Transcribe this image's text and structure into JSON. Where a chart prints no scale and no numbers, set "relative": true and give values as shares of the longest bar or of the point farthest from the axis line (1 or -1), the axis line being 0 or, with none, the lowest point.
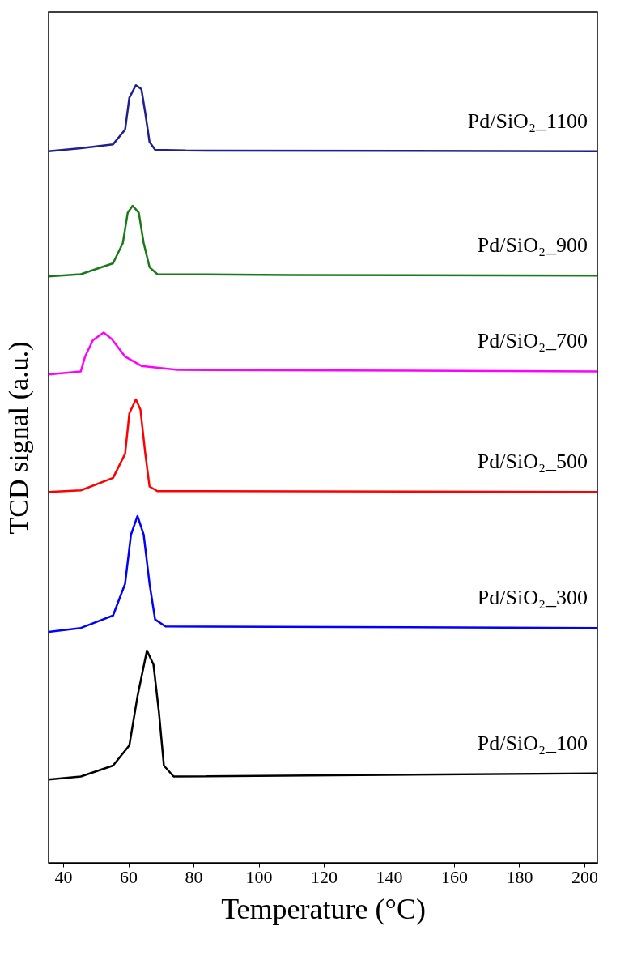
{
  "chart_data": {
    "type": "line",
    "relative": true,
    "xlabel": "Temperature (°C)",
    "ylabel": "TCD signal (a.u.)",
    "xlim": [
      35.5,
      204
    ],
    "xticks": [
      40,
      60,
      80,
      100,
      120,
      140,
      160,
      180,
      200
    ],
    "grid": false,
    "marker": "none",
    "line_style": "solid",
    "series": [
      {
        "name": "Pd/SiO₂_1100",
        "color": "#1f1f8f",
        "x": [
          35.5,
          45.4,
          55.3,
          59.0,
          60.3,
          62.3,
          64.0,
          65.2,
          66.5,
          68.2,
          77.6,
          204
        ],
        "values": [
          0.915,
          0.919,
          0.924,
          0.943,
          0.984,
          1,
          0.995,
          0.964,
          0.927,
          0.917,
          0.916,
          0.915
        ]
      },
      {
        "name": "Pd/SiO₂_900",
        "color": "#1a7a1a",
        "x": [
          35.5,
          45.4,
          55.3,
          58.3,
          59.8,
          61.3,
          63.2,
          64.7,
          66.5,
          68.9,
          109.7,
          204
        ],
        "values": [
          0.754,
          0.757,
          0.771,
          0.797,
          0.836,
          0.845,
          0.836,
          0.797,
          0.766,
          0.757,
          0.756,
          0.755
        ]
      },
      {
        "name": "Pd/SiO₂_700",
        "color": "#ff00ff",
        "x": [
          35.5,
          45.4,
          46.7,
          49.1,
          52.4,
          54.8,
          59.0,
          64.0,
          75.1,
          204
        ],
        "values": [
          0.628,
          0.632,
          0.651,
          0.672,
          0.682,
          0.674,
          0.651,
          0.639,
          0.634,
          0.632
        ]
      },
      {
        "name": "Pd/SiO₂_500",
        "color": "#ff0000",
        "x": [
          35.5,
          45.4,
          55.3,
          59.0,
          60.3,
          62.3,
          63.7,
          65.2,
          66.5,
          68.9,
          204
        ],
        "values": [
          0.477,
          0.479,
          0.495,
          0.526,
          0.578,
          0.596,
          0.583,
          0.526,
          0.484,
          0.478,
          0.477
        ]
      },
      {
        "name": "Pd/SiO₂_300",
        "color": "#0000ff",
        "x": [
          35.5,
          45.4,
          55.3,
          59.0,
          60.8,
          62.8,
          64.7,
          66.5,
          68.2,
          71.4,
          204
        ],
        "values": [
          0.297,
          0.302,
          0.318,
          0.359,
          0.422,
          0.446,
          0.422,
          0.359,
          0.313,
          0.304,
          0.302
        ]
      },
      {
        "name": "Pd/SiO₂_100",
        "color": "#000000",
        "x": [
          35.5,
          45.4,
          55.3,
          60.3,
          62.8,
          65.7,
          67.7,
          69.4,
          70.9,
          73.9,
          204
        ],
        "values": [
          0.107,
          0.111,
          0.125,
          0.151,
          0.214,
          0.273,
          0.255,
          0.193,
          0.125,
          0.111,
          0.115
        ]
      }
    ]
  }
}
